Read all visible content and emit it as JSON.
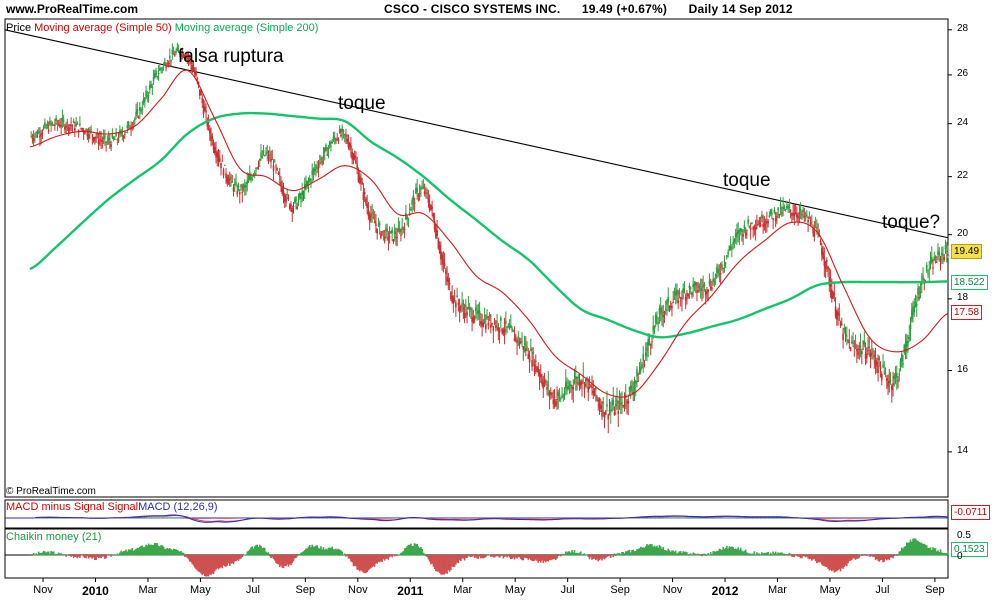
{
  "header": {
    "site": "www.ProRealTime.com",
    "ticker": "CSCO - CISCO SYSTEMS INC.",
    "quote": "19.49 (+0.67%)",
    "period": "Daily  14 Sep 2012"
  },
  "legend": {
    "price": "Price",
    "ma50": "Moving average (Simple 50)",
    "ma200": "Moving average (Simple 200)"
  },
  "copyright": "© ProRealTime.com",
  "annotations": {
    "falsa": "falsa ruptura",
    "toque1": "toque",
    "toque2": "toque",
    "toque3": "toque?"
  },
  "price_labels": {
    "last": "19.49",
    "ma200": "18.522",
    "ma50": "17.58"
  },
  "macd": {
    "legend_a": "MACD minus Signal Signal",
    "legend_b": "MACD (12,26,9)",
    "value": "-0.0711"
  },
  "chaikin": {
    "legend": "Chaikin money (21)",
    "value": "0.1523",
    "ticks": [
      "0.5",
      "0"
    ]
  },
  "colors": {
    "candle": "#2e9e3e",
    "candle_down": "#c93030",
    "ma50": "#d41a1a",
    "ma200": "#13c46a",
    "trend": "#000000",
    "last_bg": "#f4e04a",
    "macd_line": "#2b2bb8",
    "signal_line": "#c0406a",
    "hist_up": "#3aa84a",
    "hist_down": "#d05050"
  },
  "chart_data": {
    "type": "line",
    "title": "CSCO - CISCO SYSTEMS INC.",
    "xlabel": "",
    "ylabel": "",
    "ylim": [
      13,
      28.5
    ],
    "yticks": [
      28,
      26,
      24,
      22,
      20,
      18,
      16,
      14
    ],
    "xticks": [
      "Nov",
      "2010",
      "Mar",
      "May",
      "Jul",
      "Sep",
      "Nov",
      "2011",
      "Mar",
      "May",
      "Jul",
      "Sep",
      "Nov",
      "2012",
      "Mar",
      "May",
      "Jul",
      "Sep"
    ],
    "x": [
      "2009-10",
      "2009-11",
      "2009-12",
      "2010-01",
      "2010-02",
      "2010-03",
      "2010-04",
      "2010-05",
      "2010-06",
      "2010-07",
      "2010-08",
      "2010-09",
      "2010-10",
      "2010-11",
      "2010-12",
      "2011-01",
      "2011-02",
      "2011-03",
      "2011-04",
      "2011-05",
      "2011-06",
      "2011-07",
      "2011-08",
      "2011-09",
      "2011-10",
      "2011-11",
      "2011-12",
      "2012-01",
      "2012-02",
      "2012-03",
      "2012-04",
      "2012-05",
      "2012-06",
      "2012-07",
      "2012-08",
      "2012-09"
    ],
    "series": [
      {
        "name": "Price",
        "values": [
          23.5,
          24.0,
          23.8,
          23.3,
          24.2,
          26.3,
          26.8,
          23.2,
          21.5,
          22.8,
          21.0,
          22.5,
          23.5,
          20.6,
          20.0,
          21.5,
          18.3,
          17.5,
          17.2,
          16.5,
          15.3,
          15.8,
          15.0,
          15.6,
          17.5,
          18.2,
          18.5,
          20.0,
          20.5,
          20.8,
          20.0,
          17.0,
          16.5,
          15.8,
          18.5,
          19.49
        ]
      },
      {
        "name": "Moving average (Simple 50)",
        "values": [
          23.1,
          23.5,
          23.7,
          23.6,
          23.9,
          25.0,
          26.2,
          24.3,
          22.3,
          22.0,
          21.5,
          21.9,
          22.4,
          21.9,
          20.7,
          20.7,
          19.8,
          18.7,
          18.2,
          17.4,
          16.4,
          15.9,
          15.4,
          15.4,
          16.2,
          17.3,
          18.1,
          19.1,
          19.8,
          20.4,
          20.1,
          18.4,
          16.9,
          16.5,
          16.8,
          17.58
        ]
      },
      {
        "name": "Moving average (Simple 200)",
        "values": [
          18.9,
          19.6,
          20.4,
          21.2,
          21.9,
          22.6,
          23.6,
          24.2,
          24.4,
          24.4,
          24.3,
          24.2,
          24.1,
          23.3,
          22.7,
          22.0,
          21.2,
          20.5,
          19.8,
          19.2,
          18.4,
          17.7,
          17.4,
          17.1,
          16.9,
          17.0,
          17.2,
          17.4,
          17.7,
          18.0,
          18.4,
          18.5,
          18.5,
          18.5,
          18.5,
          18.52
        ]
      }
    ],
    "trendline": {
      "from": [
        "2009-09",
        28.0
      ],
      "to": [
        "2012-10",
        19.9
      ]
    },
    "macd_panel": {
      "value": -0.0711
    },
    "chaikin_panel": {
      "value": 0.1523
    }
  }
}
